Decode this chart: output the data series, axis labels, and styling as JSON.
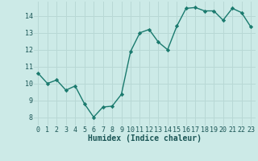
{
  "x": [
    0,
    1,
    2,
    3,
    4,
    5,
    6,
    7,
    8,
    9,
    10,
    11,
    12,
    13,
    14,
    15,
    16,
    17,
    18,
    19,
    20,
    21,
    22,
    23
  ],
  "y": [
    10.6,
    10.0,
    10.2,
    9.6,
    9.85,
    8.8,
    8.0,
    8.6,
    8.65,
    9.35,
    11.9,
    13.0,
    13.2,
    12.45,
    12.0,
    13.4,
    14.45,
    14.5,
    14.3,
    14.3,
    13.75,
    14.45,
    14.2,
    13.35
  ],
  "line_color": "#1a7a6e",
  "marker": "D",
  "markersize": 2.2,
  "linewidth": 1.0,
  "bg_color": "#cceae7",
  "grid_color": "#b8d8d5",
  "xlabel": "Humidex (Indice chaleur)",
  "xlabel_color": "#1a5555",
  "tick_color": "#1a5555",
  "xlim": [
    -0.5,
    23.5
  ],
  "ylim": [
    7.5,
    14.85
  ],
  "yticks": [
    8,
    9,
    10,
    11,
    12,
    13,
    14
  ],
  "xticks": [
    0,
    1,
    2,
    3,
    4,
    5,
    6,
    7,
    8,
    9,
    10,
    11,
    12,
    13,
    14,
    15,
    16,
    17,
    18,
    19,
    20,
    21,
    22,
    23
  ],
  "tick_fontsize": 6.0,
  "xlabel_fontsize": 7.0
}
